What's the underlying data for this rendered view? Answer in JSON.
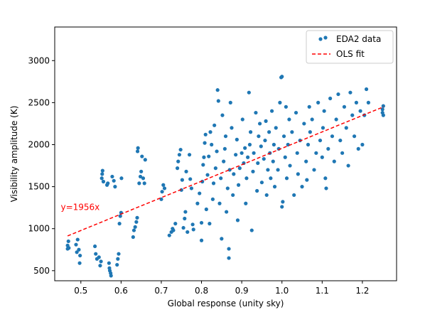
{
  "chart_data": {
    "type": "scatter",
    "title": "",
    "xlabel": "Global response (unity sky)",
    "ylabel": "Visibility amplitude (K)",
    "xlim": [
      0.435,
      1.285
    ],
    "ylim": [
      380,
      3400
    ],
    "x_ticks": [
      0.5,
      0.6,
      0.7,
      0.8,
      0.9,
      1.0,
      1.1,
      1.2
    ],
    "x_tick_labels": [
      "0.5",
      "0.6",
      "0.7",
      "0.8",
      "0.9",
      "1.0",
      "1.1",
      "1.2"
    ],
    "y_ticks": [
      500,
      1000,
      1500,
      2000,
      2500,
      3000
    ],
    "y_tick_labels": [
      "500",
      "1000",
      "1500",
      "2000",
      "2500",
      "3000"
    ],
    "grid": false,
    "legend_position": "top-right",
    "colors": {
      "data": "#1f77b4",
      "fit": "#ff0000"
    },
    "series": [
      {
        "name": "EDA2 data",
        "style": "points",
        "points": [
          [
            0.467,
            760
          ],
          [
            0.467,
            800
          ],
          [
            0.469,
            850
          ],
          [
            0.47,
            770
          ],
          [
            0.488,
            810
          ],
          [
            0.49,
            720
          ],
          [
            0.492,
            870
          ],
          [
            0.495,
            750
          ],
          [
            0.497,
            590
          ],
          [
            0.498,
            680
          ],
          [
            0.535,
            790
          ],
          [
            0.537,
            700
          ],
          [
            0.54,
            640
          ],
          [
            0.545,
            660
          ],
          [
            0.548,
            560
          ],
          [
            0.55,
            610
          ],
          [
            0.552,
            1600
          ],
          [
            0.553,
            1650
          ],
          [
            0.554,
            1690
          ],
          [
            0.556,
            1560
          ],
          [
            0.565,
            1520
          ],
          [
            0.567,
            1540
          ],
          [
            0.57,
            590
          ],
          [
            0.571,
            530
          ],
          [
            0.572,
            500
          ],
          [
            0.574,
            470
          ],
          [
            0.575,
            440
          ],
          [
            0.578,
            1620
          ],
          [
            0.582,
            1570
          ],
          [
            0.585,
            1500
          ],
          [
            0.59,
            570
          ],
          [
            0.592,
            640
          ],
          [
            0.594,
            700
          ],
          [
            0.596,
            1060
          ],
          [
            0.598,
            1150
          ],
          [
            0.6,
            1190
          ],
          [
            0.601,
            1600
          ],
          [
            0.63,
            900
          ],
          [
            0.632,
            980
          ],
          [
            0.635,
            1020
          ],
          [
            0.638,
            1080
          ],
          [
            0.64,
            1130
          ],
          [
            0.641,
            1920
          ],
          [
            0.642,
            1960
          ],
          [
            0.645,
            1540
          ],
          [
            0.648,
            1620
          ],
          [
            0.65,
            1680
          ],
          [
            0.652,
            1860
          ],
          [
            0.655,
            1600
          ],
          [
            0.658,
            1540
          ],
          [
            0.66,
            1820
          ],
          [
            0.7,
            1350
          ],
          [
            0.702,
            1440
          ],
          [
            0.705,
            1520
          ],
          [
            0.708,
            1480
          ],
          [
            0.72,
            920
          ],
          [
            0.725,
            960
          ],
          [
            0.728,
            1000
          ],
          [
            0.73,
            980
          ],
          [
            0.735,
            1060
          ],
          [
            0.74,
            1720
          ],
          [
            0.742,
            1800
          ],
          [
            0.745,
            1880
          ],
          [
            0.748,
            1940
          ],
          [
            0.75,
            1460
          ],
          [
            0.752,
            1580
          ],
          [
            0.755,
            1010
          ],
          [
            0.758,
            1120
          ],
          [
            0.76,
            1200
          ],
          [
            0.762,
            1680
          ],
          [
            0.765,
            960
          ],
          [
            0.77,
            1880
          ],
          [
            0.772,
            1590
          ],
          [
            0.775,
            1480
          ],
          [
            0.778,
            1050
          ],
          [
            0.78,
            990
          ],
          [
            0.79,
            1300
          ],
          [
            0.795,
            1420
          ],
          [
            0.8,
            860
          ],
          [
            0.8,
            1070
          ],
          [
            0.802,
            1560
          ],
          [
            0.804,
            1760
          ],
          [
            0.806,
            1850
          ],
          [
            0.808,
            2020
          ],
          [
            0.81,
            2120
          ],
          [
            0.812,
            1230
          ],
          [
            0.815,
            1640
          ],
          [
            0.818,
            1860
          ],
          [
            0.82,
            1060
          ],
          [
            0.822,
            2150
          ],
          [
            0.825,
            2000
          ],
          [
            0.828,
            1350
          ],
          [
            0.83,
            1540
          ],
          [
            0.832,
            2230
          ],
          [
            0.835,
            1720
          ],
          [
            0.838,
            1920
          ],
          [
            0.84,
            2650
          ],
          [
            0.842,
            2520
          ],
          [
            0.845,
            1300
          ],
          [
            0.848,
            1600
          ],
          [
            0.85,
            880
          ],
          [
            0.852,
            2350
          ],
          [
            0.855,
            1800
          ],
          [
            0.858,
            1950
          ],
          [
            0.86,
            2100
          ],
          [
            0.862,
            1200
          ],
          [
            0.865,
            1480
          ],
          [
            0.868,
            760
          ],
          [
            0.868,
            650
          ],
          [
            0.87,
            1700
          ],
          [
            0.872,
            2500
          ],
          [
            0.875,
            2200
          ],
          [
            0.878,
            1400
          ],
          [
            0.88,
            1650
          ],
          [
            0.885,
            1880
          ],
          [
            0.888,
            2060
          ],
          [
            0.89,
            1100
          ],
          [
            0.892,
            1520
          ],
          [
            0.895,
            1720
          ],
          [
            0.9,
            1900
          ],
          [
            0.902,
            2300
          ],
          [
            0.905,
            1780
          ],
          [
            0.908,
            1960
          ],
          [
            0.91,
            1300
          ],
          [
            0.912,
            1600
          ],
          [
            0.915,
            1850
          ],
          [
            0.918,
            2620
          ],
          [
            0.92,
            2000
          ],
          [
            0.922,
            2150
          ],
          [
            0.925,
            980
          ],
          [
            0.928,
            1680
          ],
          [
            0.93,
            1900
          ],
          [
            0.935,
            2380
          ],
          [
            0.938,
            1450
          ],
          [
            0.94,
            1780
          ],
          [
            0.942,
            2100
          ],
          [
            0.945,
            2250
          ],
          [
            0.948,
            1980
          ],
          [
            0.95,
            1550
          ],
          [
            0.955,
            1830
          ],
          [
            0.958,
            2050
          ],
          [
            0.96,
            2280
          ],
          [
            0.962,
            1400
          ],
          [
            0.965,
            1700
          ],
          [
            0.968,
            2150
          ],
          [
            0.97,
            1900
          ],
          [
            0.972,
            1600
          ],
          [
            0.975,
            2400
          ],
          [
            0.978,
            1800
          ],
          [
            0.98,
            2000
          ],
          [
            0.982,
            1500
          ],
          [
            0.985,
            2200
          ],
          [
            0.99,
            1700
          ],
          [
            0.992,
            1950
          ],
          [
            0.995,
            2500
          ],
          [
            0.998,
            2800
          ],
          [
            1.0,
            2810
          ],
          [
            1.0,
            1260
          ],
          [
            1.002,
            1320
          ],
          [
            1.005,
            2100
          ],
          [
            1.008,
            1850
          ],
          [
            1.01,
            2450
          ],
          [
            1.012,
            1600
          ],
          [
            1.015,
            2000
          ],
          [
            1.018,
            2300
          ],
          [
            1.02,
            1750
          ],
          [
            1.025,
            2150
          ],
          [
            1.03,
            1400
          ],
          [
            1.035,
            2380
          ],
          [
            1.038,
            1900
          ],
          [
            1.04,
            1650
          ],
          [
            1.045,
            2050
          ],
          [
            1.05,
            1500
          ],
          [
            1.055,
            2250
          ],
          [
            1.06,
            1800
          ],
          [
            1.062,
            1580
          ],
          [
            1.065,
            2000
          ],
          [
            1.068,
            2450
          ],
          [
            1.07,
            2150
          ],
          [
            1.075,
            2300
          ],
          [
            1.08,
            1700
          ],
          [
            1.085,
            1900
          ],
          [
            1.09,
            2500
          ],
          [
            1.095,
            2050
          ],
          [
            1.1,
            1850
          ],
          [
            1.102,
            2200
          ],
          [
            1.105,
            2400
          ],
          [
            1.108,
            1600
          ],
          [
            1.11,
            1480
          ],
          [
            1.115,
            1950
          ],
          [
            1.12,
            2550
          ],
          [
            1.125,
            2100
          ],
          [
            1.13,
            1800
          ],
          [
            1.135,
            2300
          ],
          [
            1.14,
            2600
          ],
          [
            1.145,
            2050
          ],
          [
            1.15,
            1900
          ],
          [
            1.155,
            2450
          ],
          [
            1.16,
            2200
          ],
          [
            1.165,
            1750
          ],
          [
            1.17,
            2620
          ],
          [
            1.175,
            2350
          ],
          [
            1.18,
            2100
          ],
          [
            1.185,
            2500
          ],
          [
            1.19,
            1950
          ],
          [
            1.195,
            2400
          ],
          [
            1.2,
            2000
          ],
          [
            1.205,
            2350
          ],
          [
            1.21,
            2660
          ],
          [
            1.215,
            2500
          ],
          [
            1.25,
            2380
          ],
          [
            1.25,
            2420
          ],
          [
            1.252,
            2460
          ],
          [
            1.252,
            2350
          ]
        ]
      },
      {
        "name": "OLS fit",
        "style": "dashed-line",
        "slope": 1956,
        "x_range": [
          0.467,
          1.253
        ]
      }
    ],
    "annotations": [
      {
        "text": "y=1956x",
        "x": 0.45,
        "y": 1220
      }
    ]
  }
}
